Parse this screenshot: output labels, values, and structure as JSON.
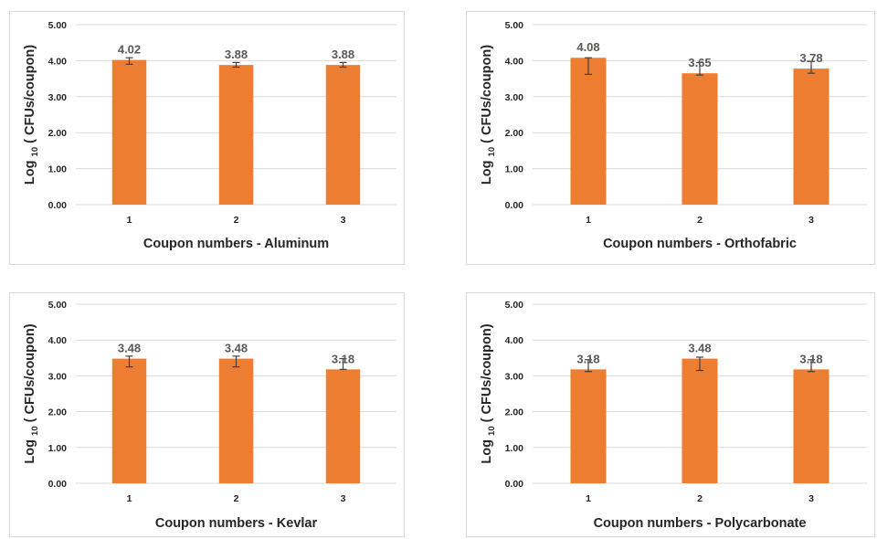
{
  "colors": {
    "bar": "#ED7D31",
    "grid": "#d9d9d9",
    "error_bar": "#404040",
    "text": "#262626",
    "data_label": "#595959"
  },
  "chart_data": [
    {
      "type": "bar",
      "categories": [
        "1",
        "2",
        "3"
      ],
      "values": [
        4.02,
        3.88,
        3.88
      ],
      "data_labels": [
        "4.02",
        "3.88",
        "3.88"
      ],
      "error_low": [
        3.9,
        3.82,
        3.82
      ],
      "error_high": [
        4.08,
        3.95,
        3.95
      ],
      "xlabel": "Coupon numbers - Aluminum",
      "ylabel_main": "Log",
      "ylabel_sub": "10",
      "ylabel_rest": "( CFUs/coupon)",
      "ylim": [
        0,
        5
      ],
      "yticks": [
        "0.00",
        "1.00",
        "2.00",
        "3.00",
        "4.00",
        "5.00"
      ],
      "grid": true
    },
    {
      "type": "bar",
      "categories": [
        "1",
        "2",
        "3"
      ],
      "values": [
        4.08,
        3.65,
        3.78
      ],
      "data_labels": [
        "4.08",
        "3.65",
        "3.78"
      ],
      "error_low": [
        3.62,
        3.6,
        3.65
      ],
      "error_high": [
        4.08,
        3.95,
        3.98
      ],
      "xlabel": "Coupon numbers - Orthofabric",
      "ylabel_main": "Log",
      "ylabel_sub": "10",
      "ylabel_rest": "( CFUs/coupon)",
      "ylim": [
        0,
        5
      ],
      "yticks": [
        "0.00",
        "1.00",
        "2.00",
        "3.00",
        "4.00",
        "5.00"
      ],
      "grid": true
    },
    {
      "type": "bar",
      "categories": [
        "1",
        "2",
        "3"
      ],
      "values": [
        3.48,
        3.48,
        3.18
      ],
      "data_labels": [
        "3.48",
        "3.48",
        "3.18"
      ],
      "error_low": [
        3.25,
        3.25,
        3.18
      ],
      "error_high": [
        3.55,
        3.55,
        3.48
      ],
      "xlabel": "Coupon numbers - Kevlar",
      "ylabel_main": "Log",
      "ylabel_sub": "10",
      "ylabel_rest": "( CFUs/coupon)",
      "ylim": [
        0,
        5
      ],
      "yticks": [
        "0.00",
        "1.00",
        "2.00",
        "3.00",
        "4.00",
        "5.00"
      ],
      "grid": true
    },
    {
      "type": "bar",
      "categories": [
        "1",
        "2",
        "3"
      ],
      "values": [
        3.18,
        3.48,
        3.18
      ],
      "data_labels": [
        "3.18",
        "3.48",
        "3.18"
      ],
      "error_low": [
        3.12,
        3.15,
        3.12
      ],
      "error_high": [
        3.45,
        3.52,
        3.45
      ],
      "xlabel": "Coupon numbers - Polycarbonate",
      "ylabel_main": "Log",
      "ylabel_sub": "10",
      "ylabel_rest": "( CFUs/coupon)",
      "ylim": [
        0,
        5
      ],
      "yticks": [
        "0.00",
        "1.00",
        "2.00",
        "3.00",
        "4.00",
        "5.00"
      ],
      "grid": true
    }
  ]
}
